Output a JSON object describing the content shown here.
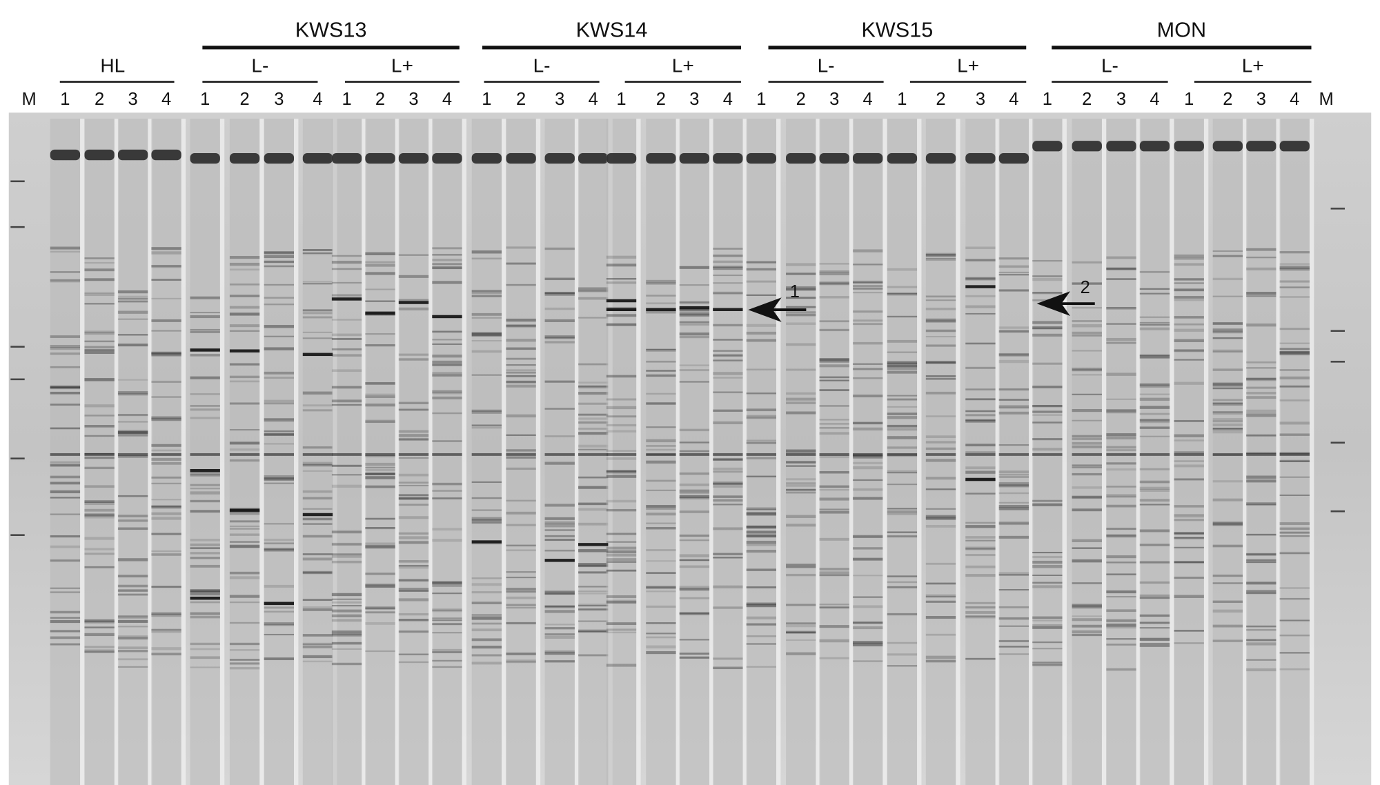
{
  "marker_label": "M",
  "groups": [
    {
      "name": "HL",
      "subgroups": []
    },
    {
      "name": "KWS13",
      "subgroups": [
        "L-",
        "L+"
      ]
    },
    {
      "name": "KWS14",
      "subgroups": [
        "L-",
        "L+"
      ]
    },
    {
      "name": "KWS15",
      "subgroups": [
        "L-",
        "L+"
      ]
    },
    {
      "name": "MON",
      "subgroups": [
        "L-",
        "L+"
      ]
    }
  ],
  "lane_numbers": [
    "1",
    "2",
    "3",
    "4"
  ],
  "arrows": [
    {
      "label": "1"
    },
    {
      "label": "2"
    }
  ],
  "colors": {
    "gel_background": "#dcdcdc",
    "band": "#1a1a1a",
    "text": "#111111"
  }
}
